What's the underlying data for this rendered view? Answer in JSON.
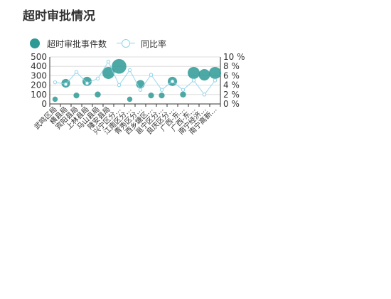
{
  "chart_title": "超时审批情况",
  "colors": {
    "bubble": "#2e9a95",
    "line": "#8fd3ea",
    "axis": "#333333",
    "grid": "#dddddd"
  },
  "chart_data": {
    "type": "scatter",
    "title": "超时审批情况",
    "legend": {
      "position": "top-left",
      "entries": [
        "超时审批事件数",
        "同比率"
      ]
    },
    "categories": [
      "武鸣区局",
      "横县局",
      "宾阳县局",
      "上林县局",
      "马山县局",
      "隆安县局",
      "兴宁区分…",
      "江南区分…",
      "青秀区分…",
      "西乡塘区…",
      "邕宁区分…",
      "良庆区分…",
      "广西-东…",
      "广西-东…",
      "南宁经济…",
      "南宁高新…"
    ],
    "series": [
      {
        "name": "超时审批事件数",
        "kind": "bubble",
        "axis": "left",
        "values": [
          50,
          220,
          90,
          240,
          100,
          330,
          400,
          50,
          210,
          90,
          90,
          240,
          100,
          330,
          310,
          330
        ]
      },
      {
        "name": "同比率",
        "kind": "line",
        "axis": "right",
        "values": [
          4.6,
          4.2,
          6.8,
          4.4,
          5.4,
          9.0,
          4.0,
          7.2,
          3.0,
          6.2,
          3.0,
          4.8,
          3.0,
          5.0,
          2.0,
          5.0
        ]
      }
    ],
    "y_left": {
      "min": 0,
      "max": 500,
      "ticks": [
        "0",
        "100",
        "200",
        "300",
        "400",
        "500"
      ]
    },
    "y_right": {
      "min": 0,
      "max": 10,
      "ticks": [
        "0 %",
        "2 %",
        "4 %",
        "6 %",
        "8 %",
        "10 %"
      ]
    },
    "grid": true
  }
}
